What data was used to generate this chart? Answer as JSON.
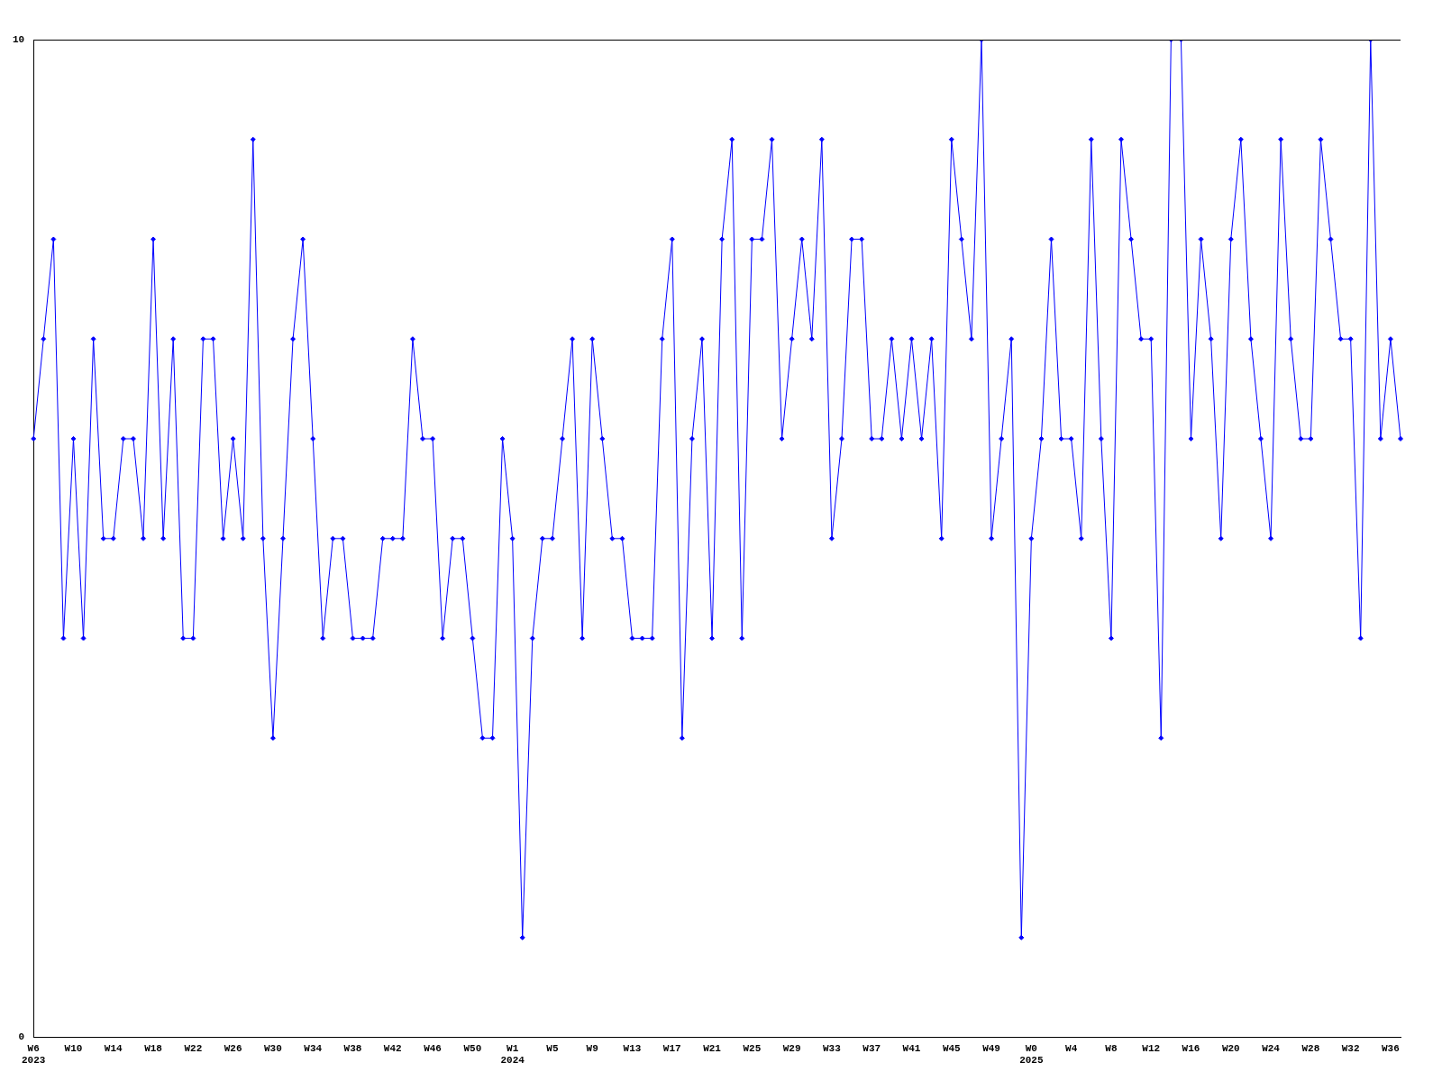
{
  "chart_data": {
    "type": "line",
    "categories": [
      "W6\n2023",
      null,
      null,
      null,
      "W10",
      null,
      null,
      null,
      "W14",
      null,
      null,
      null,
      "W18",
      null,
      null,
      null,
      "W22",
      null,
      null,
      null,
      "W26",
      null,
      null,
      null,
      "W30",
      null,
      null,
      null,
      "W34",
      null,
      null,
      null,
      "W38",
      null,
      null,
      null,
      "W42",
      null,
      null,
      null,
      "W46",
      null,
      null,
      null,
      "W50",
      null,
      null,
      null,
      "W1\n2024",
      null,
      null,
      null,
      "W5",
      null,
      null,
      null,
      "W9",
      null,
      null,
      null,
      "W13",
      null,
      null,
      null,
      "W17",
      null,
      null,
      null,
      "W21",
      null,
      null,
      null,
      "W25",
      null,
      null,
      null,
      "W29",
      null,
      null,
      null,
      "W33",
      null,
      null,
      null,
      "W37",
      null,
      null,
      null,
      "W41",
      null,
      null,
      null,
      "W45",
      null,
      null,
      null,
      "W49",
      null,
      null,
      null,
      "W0\n2025",
      null,
      null,
      null,
      "W4",
      null,
      null,
      null,
      "W8",
      null,
      null,
      null,
      "W12",
      null,
      null,
      null,
      "W16",
      null,
      null,
      null,
      "W20",
      null,
      null,
      null,
      "W24",
      null,
      null,
      null,
      "W28",
      null,
      null,
      null,
      "W32",
      null,
      null,
      null,
      "W36",
      null
    ],
    "series": [
      {
        "color": "#0000ff",
        "values": [
          6,
          7,
          8,
          4,
          6,
          4,
          7,
          5,
          5,
          6,
          6,
          5,
          8,
          5,
          7,
          4,
          4,
          7,
          7,
          5,
          6,
          5,
          9,
          5,
          3,
          5,
          7,
          8,
          6,
          4,
          5,
          5,
          4,
          4,
          4,
          5,
          5,
          5,
          7,
          6,
          6,
          4,
          5,
          5,
          4,
          3,
          3,
          6,
          5,
          1,
          4,
          5,
          5,
          6,
          7,
          4,
          7,
          6,
          5,
          5,
          4,
          4,
          4,
          7,
          8,
          3,
          6,
          7,
          4,
          8,
          9,
          4,
          8,
          8,
          9,
          6,
          7,
          8,
          7,
          9,
          5,
          6,
          8,
          8,
          6,
          6,
          7,
          6,
          7,
          6,
          7,
          5,
          9,
          8,
          7,
          10,
          5,
          6,
          7,
          1,
          5,
          6,
          8,
          6,
          6,
          5,
          9,
          6,
          4,
          9,
          8,
          7,
          7,
          3,
          10,
          10,
          6,
          8,
          7,
          5,
          8,
          9,
          7,
          6,
          5,
          9,
          7,
          6,
          6,
          9,
          8,
          7,
          7,
          4,
          10,
          6,
          7,
          6
        ]
      }
    ],
    "ylim": [
      0,
      10
    ],
    "yticks": [
      0,
      10
    ],
    "grid": false,
    "legend": false,
    "marker": "diamond",
    "line_style": "solid"
  }
}
